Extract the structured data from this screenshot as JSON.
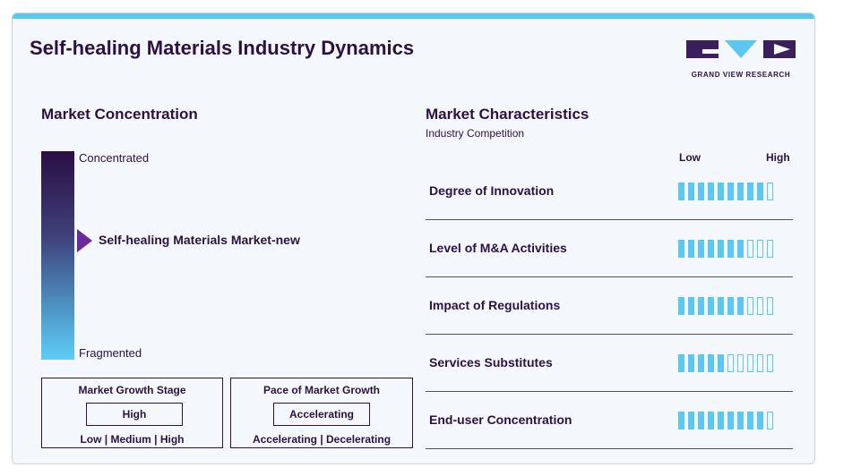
{
  "header": {
    "title": "Self-healing Materials Industry Dynamics",
    "logo_text": "GRAND VIEW RESEARCH"
  },
  "concentration": {
    "title": "Market Concentration",
    "top_label": "Concentrated",
    "bottom_label": "Fragmented",
    "market_label": "Self-healing Materials Market-new",
    "marker_level": 0.43
  },
  "growth_stage": {
    "title": "Market Growth Stage",
    "value": "High",
    "options": "Low  |  Medium  |  High"
  },
  "growth_pace": {
    "title": "Pace of Market Growth",
    "value": "Accelerating",
    "options": "Accelerating  |  Decelerating"
  },
  "characteristics": {
    "title": "Market Characteristics",
    "subtitle": "Industry Competition",
    "low_label": "Low",
    "high_label": "High",
    "max_level": 10,
    "rows": [
      {
        "label": "Degree of Innovation",
        "level": 9
      },
      {
        "label": "Level of M&A Activities",
        "level": 7
      },
      {
        "label": "Impact of Regulations",
        "level": 7
      },
      {
        "label": "Services Substitutes",
        "level": 5
      },
      {
        "label": "End-user Concentration",
        "level": 9
      }
    ]
  },
  "colors": {
    "accent": "#5cc8f2",
    "primary_text": "#2d1143",
    "marker": "#6a2a9a"
  }
}
